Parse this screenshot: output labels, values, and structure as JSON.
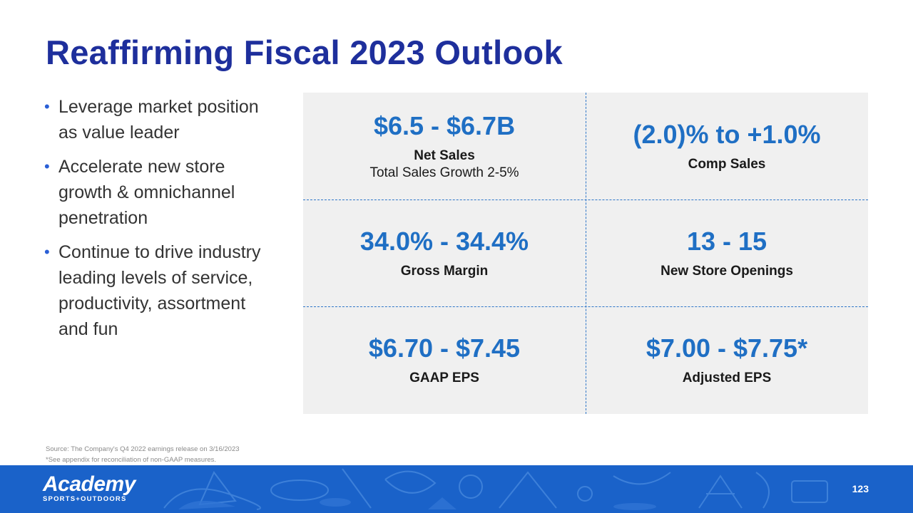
{
  "title": "Reaffirming Fiscal 2023 Outlook",
  "bullets": [
    "Leverage market position as value leader",
    "Accelerate new store growth & omnichannel penetration",
    "Continue to drive industry leading levels of service, productivity, assortment and fun"
  ],
  "metrics": [
    {
      "value": "$6.5 - $6.7B",
      "label": "Net Sales",
      "sublabel": "Total Sales Growth 2-5%"
    },
    {
      "value": "(2.0)% to +1.0%",
      "label": "Comp Sales"
    },
    {
      "value": "34.0% - 34.4%",
      "label": "Gross Margin"
    },
    {
      "value": "13 - 15",
      "label": "New Store Openings"
    },
    {
      "value": "$6.70 - $7.45",
      "label": "GAAP EPS"
    },
    {
      "value": "$7.00 - $7.75*",
      "label": "Adjusted EPS"
    }
  ],
  "footnotes": {
    "source": "Source: The Company's Q4 2022 earnings release on 3/16/2023",
    "appendix": "*See appendix for reconciliation of non-GAAP measures."
  },
  "footer": {
    "brand": "Academy",
    "tagline": "SPORTS+OUTDOORS",
    "page_number": "123"
  },
  "colors": {
    "title": "#1e2f9c",
    "metric_value": "#1f6fc4",
    "footer_bg": "#1a62c9"
  }
}
